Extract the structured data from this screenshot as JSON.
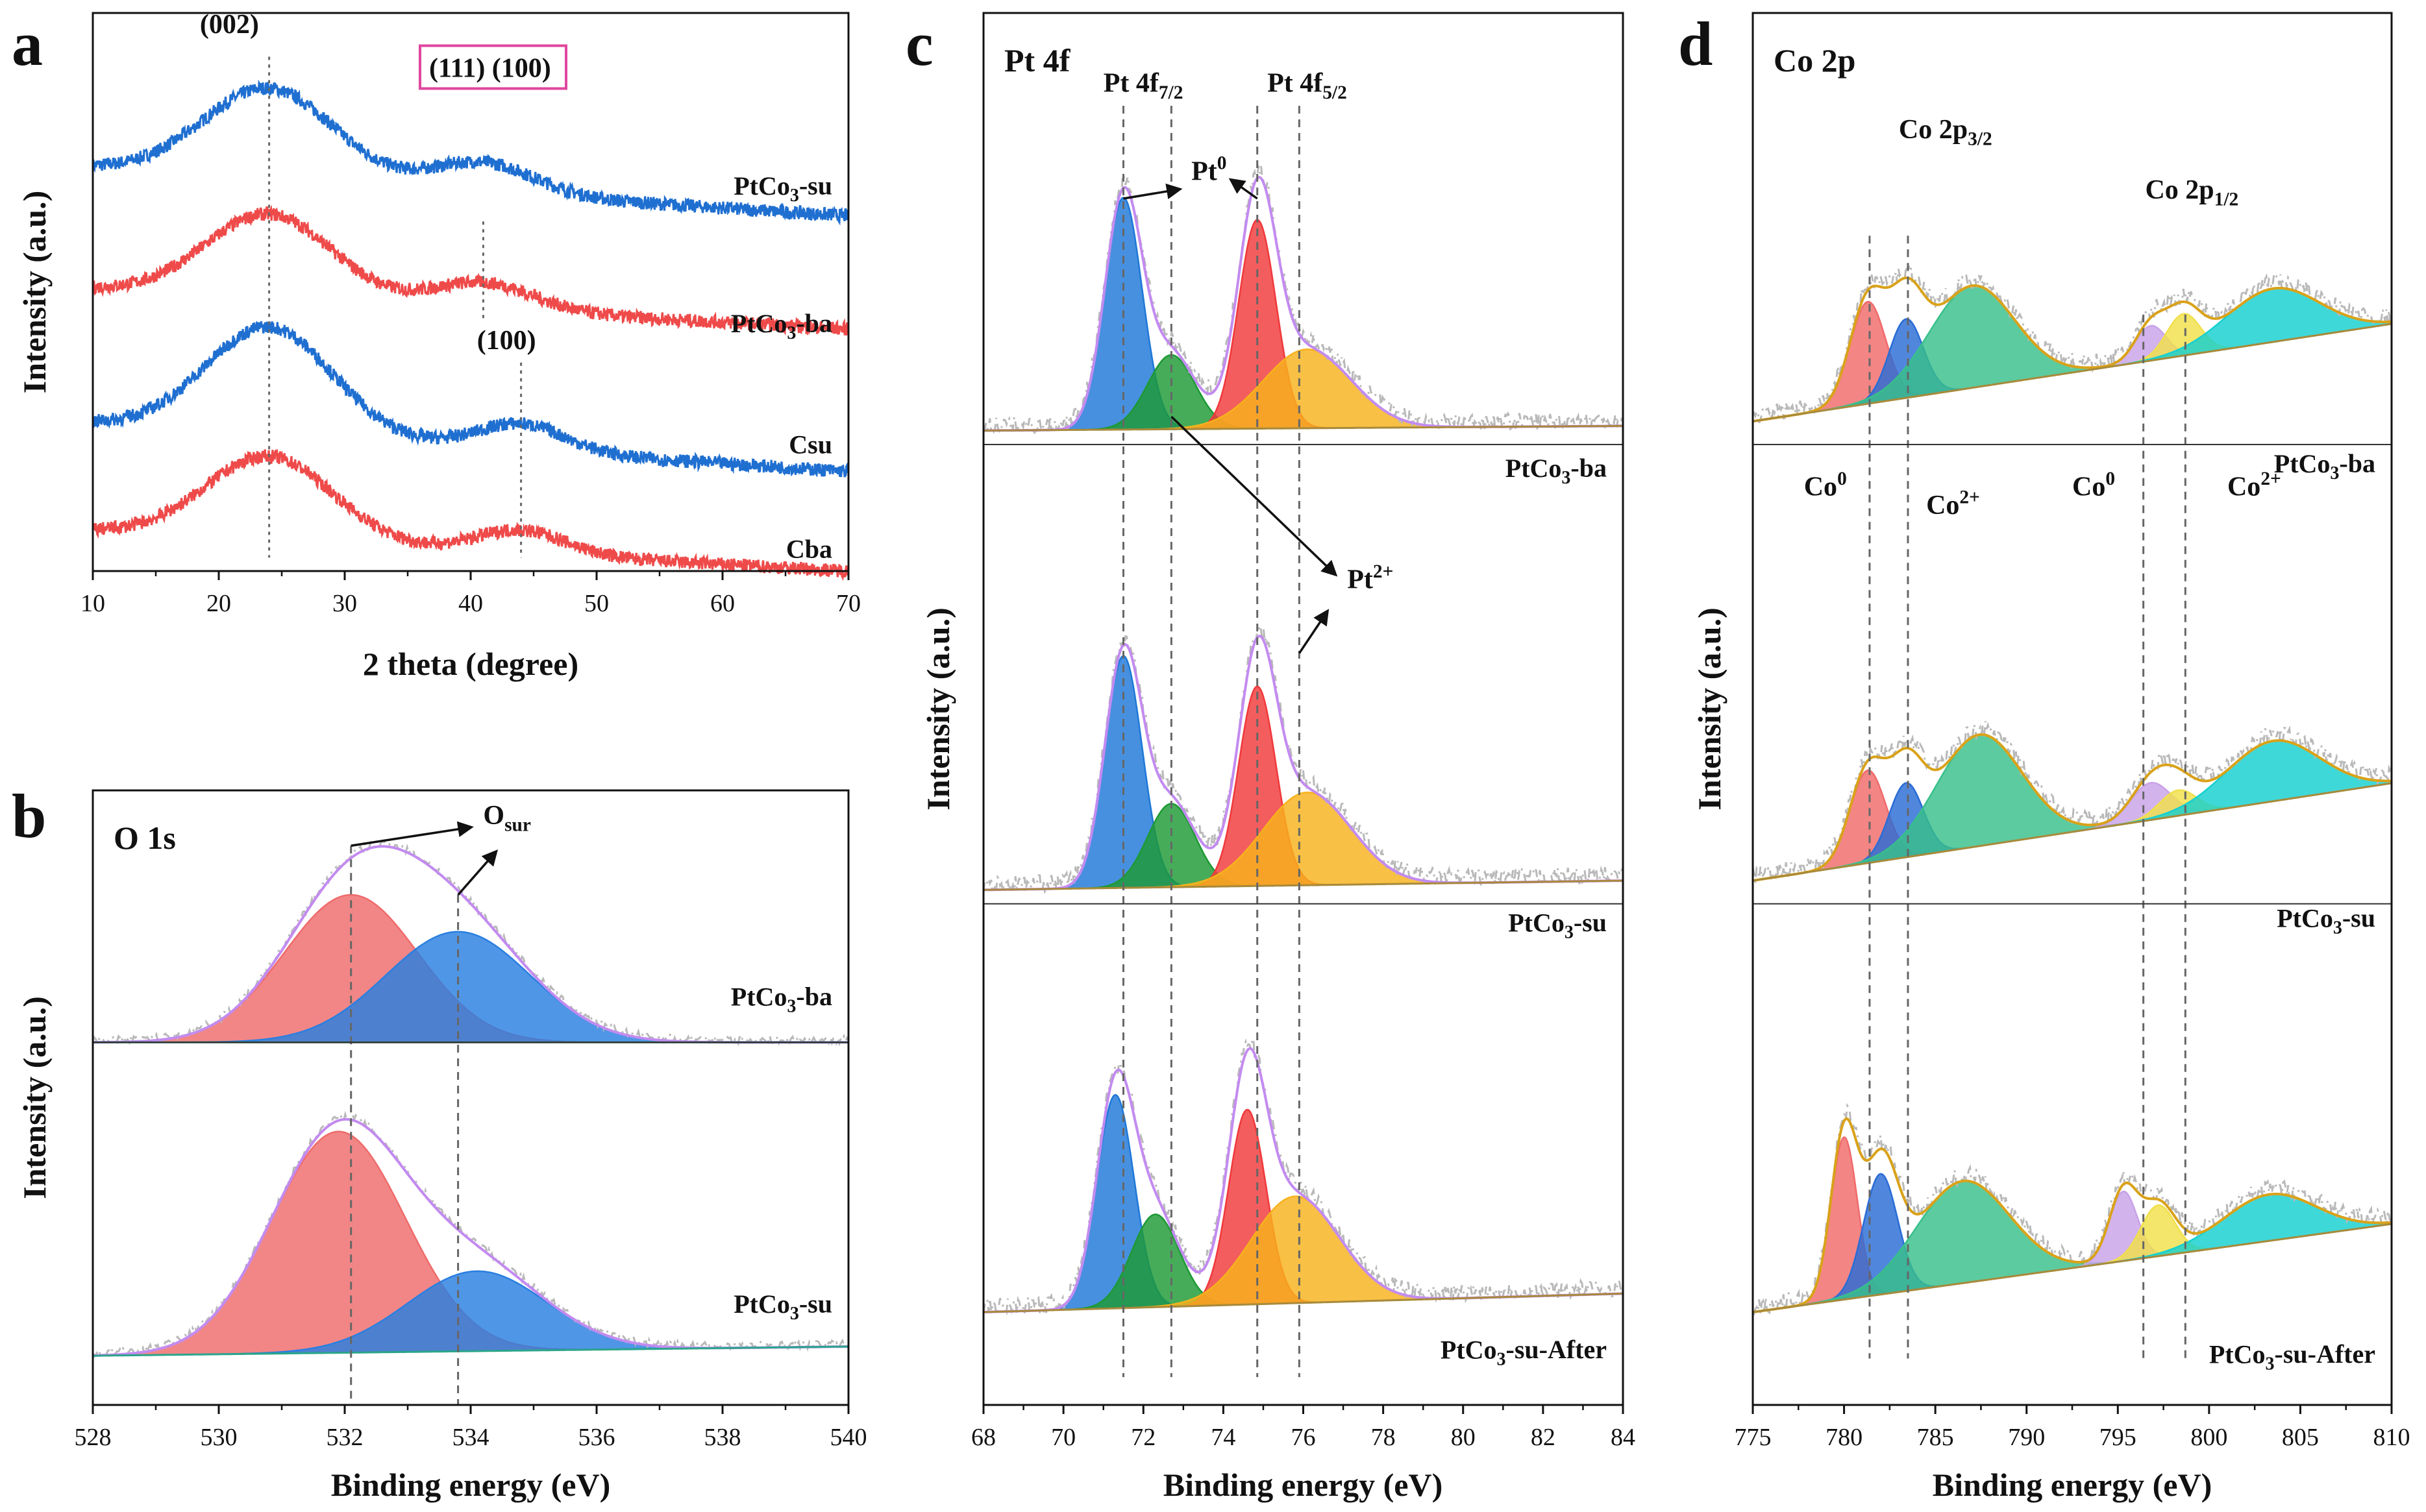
{
  "figure": {
    "background": "#ffffff"
  },
  "chart_data": [
    {
      "id": "a",
      "type": "line",
      "panel_letter": "a",
      "title": "",
      "xlabel": "2 theta (degree)",
      "ylabel": "Intensity (a.u.)",
      "xlim": [
        10,
        70
      ],
      "xticks": [
        10,
        20,
        30,
        40,
        50,
        60,
        70
      ],
      "yticks": false,
      "ylim": [
        0,
        8.3
      ],
      "series": [
        {
          "name": "PtCo3-su",
          "color": "#1f6fd1",
          "offset": 6.0,
          "peaks": [
            [
              24,
              1.35,
              5.2
            ],
            [
              41,
              0.45,
              4.0
            ]
          ],
          "slope": -0.012,
          "noise": 0.1
        },
        {
          "name": "PtCo3-ba",
          "color": "#ef4a4a",
          "offset": 4.2,
          "peaks": [
            [
              24,
              1.25,
              5.0
            ],
            [
              41,
              0.4,
              4.0
            ]
          ],
          "slope": -0.01,
          "noise": 0.1
        },
        {
          "name": "Csu",
          "color": "#1f6fd1",
          "offset": 2.2,
          "peaks": [
            [
              24,
              1.6,
              5.0
            ],
            [
              44,
              0.4,
              3.5
            ]
          ],
          "slope": -0.012,
          "noise": 0.1
        },
        {
          "name": "Cba",
          "color": "#ef4a4a",
          "offset": 0.6,
          "peaks": [
            [
              24,
              1.25,
              5.0
            ],
            [
              44,
              0.35,
              3.5
            ]
          ],
          "slope": -0.01,
          "noise": 0.1
        }
      ],
      "guides": [
        24,
        41,
        44
      ],
      "annotations": [
        {
          "text": "(002)",
          "x": 18.5,
          "y": 8.0
        },
        {
          "text": "(111) (100)",
          "x": 36.7,
          "y": 7.35,
          "boxed": true,
          "box_color": "#e0479e"
        },
        {
          "text": "(100)",
          "x": 40.5,
          "y": 3.3
        }
      ],
      "series_labels": [
        {
          "text": "PtCo",
          "sub": "3",
          "rest": "-su",
          "y": 5.6
        },
        {
          "text": "PtCo",
          "sub": "3",
          "rest": "-ba",
          "y": 3.55
        },
        {
          "text": "Csu",
          "sub": "",
          "rest": "",
          "y": 1.75
        },
        {
          "text": "Cba",
          "sub": "",
          "rest": "",
          "y": 0.2
        }
      ]
    },
    {
      "id": "b",
      "type": "area",
      "panel_letter": "b",
      "title": "O 1s",
      "xlabel": "Binding energy (eV)",
      "ylabel": "Intensity (a.u.)",
      "xlim": [
        528,
        540
      ],
      "xticks": [
        528,
        530,
        532,
        534,
        536,
        538,
        540
      ],
      "yticks": false,
      "ylim": [
        0,
        10
      ],
      "stacks": [
        {
          "name": "PtCo3-ba",
          "baseline": [
            5.9,
            5.9
          ],
          "components": [
            {
              "center": 532.1,
              "height": 2.4,
              "fwhm": 2.5,
              "color": "#ef6b6b"
            },
            {
              "center": 533.8,
              "height": 1.8,
              "fwhm": 2.7,
              "color": "#2a7fe0"
            }
          ],
          "envelope": "#c38bf0"
        },
        {
          "name": "PtCo3-su",
          "baseline": [
            0.8,
            0.95
          ],
          "components": [
            {
              "center": 531.9,
              "height": 3.6,
              "fwhm": 2.5,
              "color": "#ef6b6b"
            },
            {
              "center": 534.1,
              "height": 1.3,
              "fwhm": 2.6,
              "color": "#2a7fe0"
            }
          ],
          "envelope": "#c38bf0"
        }
      ],
      "guides": [
        532.1,
        533.8
      ],
      "annotations": [
        {
          "text": "O",
          "sub": "sur",
          "x": 534.2,
          "y": 9.45
        }
      ],
      "series_labels": [
        {
          "text": "PtCo",
          "sub": "3",
          "rest": "-ba",
          "y": 6.5
        },
        {
          "text": "PtCo",
          "sub": "3",
          "rest": "-su",
          "y": 1.5
        }
      ]
    },
    {
      "id": "c",
      "type": "area",
      "panel_letter": "c",
      "title": "Pt 4f",
      "xlabel": "Binding energy (eV)",
      "ylabel": "Intensity (a.u.)",
      "xlim": [
        68,
        84
      ],
      "xticks": [
        68,
        70,
        72,
        74,
        76,
        78,
        80,
        82,
        84
      ],
      "yticks": false,
      "ylim": [
        0,
        30
      ],
      "stacks": [
        {
          "name": "PtCo3-ba",
          "baseline": [
            21.0,
            21.1
          ],
          "components": [
            {
              "center": 71.5,
              "height": 5.0,
              "fwhm": 1.1,
              "color": "#1e78d8"
            },
            {
              "center": 72.7,
              "height": 1.6,
              "fwhm": 1.4,
              "color": "#1d9a34"
            },
            {
              "center": 74.85,
              "height": 4.5,
              "fwhm": 1.1,
              "color": "#f0393b"
            },
            {
              "center": 76.1,
              "height": 1.7,
              "fwhm": 2.6,
              "color": "#f7b21c"
            }
          ],
          "envelope": "#c38bf0"
        },
        {
          "name": "PtCo3-su",
          "baseline": [
            11.1,
            11.3
          ],
          "components": [
            {
              "center": 71.5,
              "height": 5.0,
              "fwhm": 1.1,
              "color": "#1e78d8"
            },
            {
              "center": 72.7,
              "height": 1.8,
              "fwhm": 1.4,
              "color": "#1d9a34"
            },
            {
              "center": 74.85,
              "height": 4.3,
              "fwhm": 1.1,
              "color": "#f0393b"
            },
            {
              "center": 76.1,
              "height": 2.0,
              "fwhm": 2.6,
              "color": "#f7b21c"
            }
          ],
          "envelope": "#c38bf0"
        },
        {
          "name": "PtCo3-su-After",
          "baseline": [
            2.0,
            2.4
          ],
          "components": [
            {
              "center": 71.3,
              "height": 4.6,
              "fwhm": 1.1,
              "color": "#1e78d8"
            },
            {
              "center": 72.3,
              "height": 2.0,
              "fwhm": 1.4,
              "color": "#1d9a34"
            },
            {
              "center": 74.6,
              "height": 4.2,
              "fwhm": 1.1,
              "color": "#f0393b"
            },
            {
              "center": 75.8,
              "height": 2.3,
              "fwhm": 2.6,
              "color": "#f7b21c"
            }
          ],
          "envelope": "#c38bf0"
        }
      ],
      "guides": [
        71.5,
        72.7,
        74.85,
        75.9
      ],
      "annotations": [
        {
          "text": "Pt 4f",
          "sub": "7/2",
          "x": 71.0,
          "y": 28.3
        },
        {
          "text": "Pt 4f",
          "sub": "5/2",
          "x": 75.1,
          "y": 28.3
        },
        {
          "text": "Pt",
          "sup": "0",
          "x": 73.2,
          "y": 26.4
        },
        {
          "text": "Pt",
          "sup": "2+",
          "x": 77.1,
          "y": 17.6
        }
      ],
      "series_labels": [
        {
          "text": "PtCo",
          "sub": "3",
          "rest": "-ba",
          "y": 20.0
        },
        {
          "text": "PtCo",
          "sub": "3",
          "rest": "-su",
          "y": 10.2
        },
        {
          "text": "PtCo",
          "sub": "3",
          "rest": "-su-After",
          "y": 1.0
        }
      ]
    },
    {
      "id": "d",
      "type": "area",
      "panel_letter": "d",
      "title": "Co 2p",
      "xlabel": "Binding energy (eV)",
      "ylabel": "Intensity (a.u.)",
      "xlim": [
        775,
        810
      ],
      "xticks": [
        775,
        780,
        785,
        790,
        795,
        800,
        805,
        810
      ],
      "yticks": false,
      "ylim": [
        0,
        30
      ],
      "stacks": [
        {
          "name": "PtCo3-ba",
          "baseline": [
            21.2,
            23.3
          ],
          "components": [
            {
              "center": 781.3,
              "height": 2.2,
              "fwhm": 2.3,
              "color": "#f06a6a"
            },
            {
              "center": 783.4,
              "height": 1.7,
              "fwhm": 2.2,
              "color": "#2a6cd6"
            },
            {
              "center": 787.0,
              "height": 2.2,
              "fwhm": 5.5,
              "color": "#38c08a"
            },
            {
              "center": 796.8,
              "height": 0.75,
              "fwhm": 2.0,
              "color": "#c9a2e8"
            },
            {
              "center": 798.6,
              "height": 0.9,
              "fwhm": 2.2,
              "color": "#f0e04a"
            },
            {
              "center": 803.5,
              "height": 1.15,
              "fwhm": 6.0,
              "color": "#15d0d0"
            }
          ],
          "envelope": "#d9a21a"
        },
        {
          "name": "PtCo3-su",
          "baseline": [
            11.3,
            13.4
          ],
          "components": [
            {
              "center": 781.3,
              "height": 2.0,
              "fwhm": 2.3,
              "color": "#f06a6a"
            },
            {
              "center": 783.4,
              "height": 1.6,
              "fwhm": 2.2,
              "color": "#2a6cd6"
            },
            {
              "center": 787.4,
              "height": 2.4,
              "fwhm": 5.5,
              "color": "#38c08a"
            },
            {
              "center": 796.8,
              "height": 0.8,
              "fwhm": 2.6,
              "color": "#c9a2e8"
            },
            {
              "center": 798.3,
              "height": 0.55,
              "fwhm": 2.4,
              "color": "#f0e04a"
            },
            {
              "center": 803.5,
              "height": 1.3,
              "fwhm": 6.0,
              "color": "#15d0d0"
            }
          ],
          "envelope": "#d9a21a"
        },
        {
          "name": "PtCo3-su-After",
          "baseline": [
            2.0,
            3.9
          ],
          "components": [
            {
              "center": 780.0,
              "height": 3.5,
              "fwhm": 1.7,
              "color": "#f06a6a"
            },
            {
              "center": 782.0,
              "height": 2.6,
              "fwhm": 2.2,
              "color": "#2a6cd6"
            },
            {
              "center": 786.5,
              "height": 2.2,
              "fwhm": 6.0,
              "color": "#38c08a"
            },
            {
              "center": 795.3,
              "height": 1.5,
              "fwhm": 1.8,
              "color": "#c9a2e8"
            },
            {
              "center": 797.2,
              "height": 1.1,
              "fwhm": 2.2,
              "color": "#f0e04a"
            },
            {
              "center": 803.3,
              "height": 1.0,
              "fwhm": 6.0,
              "color": "#15d0d0"
            }
          ],
          "envelope": "#d9a21a"
        }
      ],
      "guides": [
        781.4,
        783.5,
        796.4,
        798.7
      ],
      "annotations": [
        {
          "text": "Co 2p",
          "sub": "3/2",
          "x": 783.0,
          "y": 27.3
        },
        {
          "text": "Co 2p",
          "sub": "1/2",
          "x": 796.5,
          "y": 26.0
        },
        {
          "text": "Co",
          "sup": "0",
          "x": 777.8,
          "y": 19.6
        },
        {
          "text": "Co",
          "sup": "2+",
          "x": 784.5,
          "y": 19.2
        },
        {
          "text": "Co",
          "sup": "0",
          "x": 792.5,
          "y": 19.6
        },
        {
          "text": "Co",
          "sup": "2+",
          "x": 801.0,
          "y": 19.6
        }
      ],
      "series_labels": [
        {
          "text": "PtCo",
          "sub": "3",
          "rest": "-ba",
          "y": 20.1
        },
        {
          "text": "PtCo",
          "sub": "3",
          "rest": "-su",
          "y": 10.3
        },
        {
          "text": "PtCo",
          "sub": "3",
          "rest": "-su-After",
          "y": 0.9
        }
      ]
    }
  ]
}
